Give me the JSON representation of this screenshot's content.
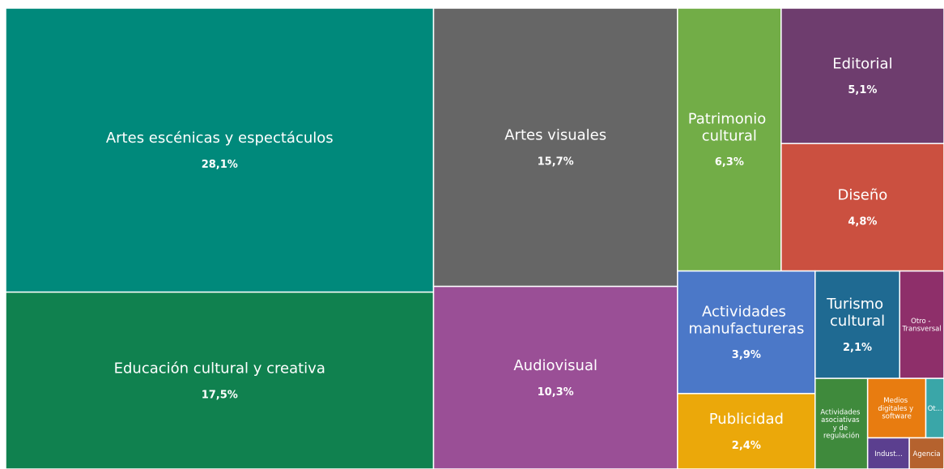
{
  "chart_data": {
    "type": "treemap",
    "categories": [
      "Artes escénicas y espectáculos",
      "Educación cultural y creativa",
      "Artes visuales",
      "Audiovisual",
      "Patrimonio cultural",
      "Editorial",
      "Diseño",
      "Actividades manufactureras",
      "Publicidad",
      "Turismo cultural",
      "Otro - Transversal",
      "Actividades asociativas y de regulación",
      "Medios digitales y software",
      "Ot...",
      "Indust...",
      "Agencia"
    ],
    "values": [
      28.1,
      17.5,
      15.7,
      10.3,
      6.3,
      5.1,
      4.8,
      3.9,
      2.4,
      2.1,
      1.1,
      1.1,
      0.8,
      0.25,
      0.3,
      0.25
    ],
    "value_labels": [
      "28,1%",
      "17,5%",
      "15,7%",
      "10,3%",
      "6,3%",
      "5,1%",
      "4,8%",
      "3,9%",
      "2,4%",
      "2,1%",
      null,
      null,
      null,
      null,
      null,
      null
    ],
    "colors": [
      "#00897b",
      "#10814f",
      "#666666",
      "#9a4f96",
      "#72ad47",
      "#6e3d6e",
      "#cb5040",
      "#4b78c8",
      "#eba80a",
      "#1f6a92",
      "#8e2f6a",
      "#3f8a3c",
      "#e87c10",
      "#3aa6a8",
      "#5b3f8f",
      "#b5622e"
    ]
  }
}
